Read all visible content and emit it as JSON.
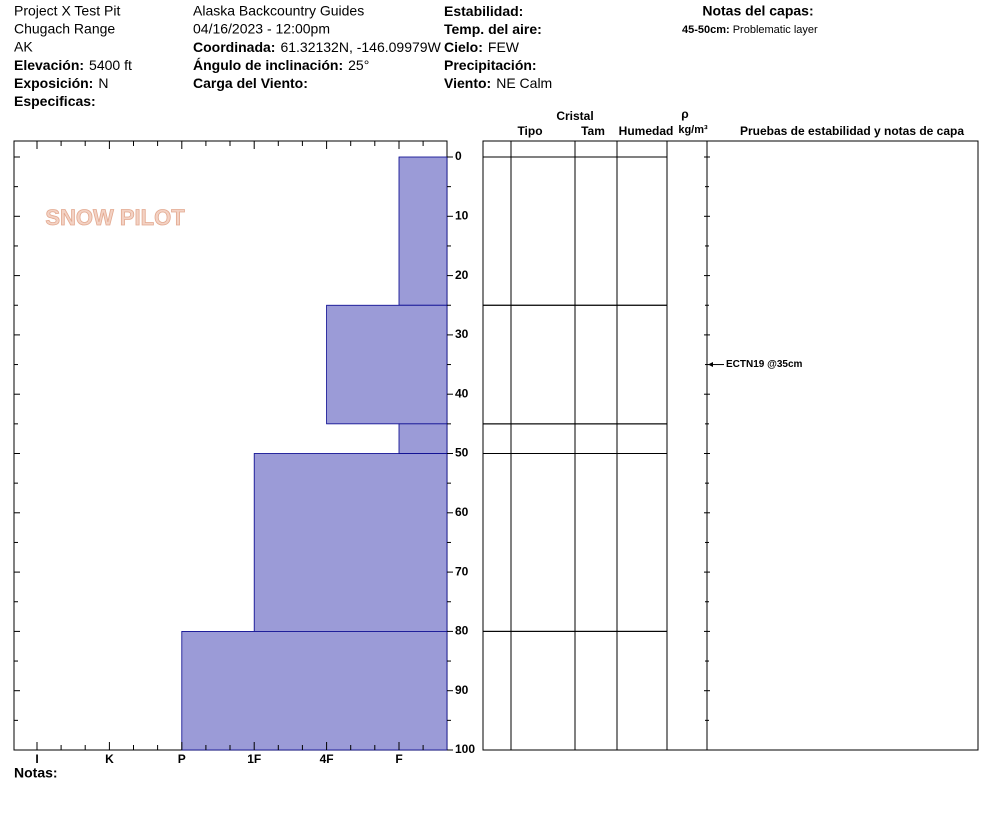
{
  "header": {
    "site": [
      "Project X Test Pit",
      "Chugach Range",
      "AK"
    ],
    "fields_left": [
      {
        "label": "Elevación:",
        "value": "5400 ft"
      },
      {
        "label": "Exposición:",
        "value": "N"
      },
      {
        "label": "Especificas:"
      }
    ],
    "observer": [
      "Alaska Backcountry Guides",
      "04/16/2023 - 12:00pm"
    ],
    "fields_mid": [
      {
        "label": "Coordinada:",
        "value": "61.32132N, -146.09979W"
      },
      {
        "label": "Ángulo de inclinación:",
        "value": "25°"
      },
      {
        "label": "Carga del Viento:"
      }
    ],
    "fields_right": [
      {
        "label": "Estabilidad:"
      },
      {
        "label": "Temp. del aire:"
      },
      {
        "label": "Cielo:",
        "value": "FEW"
      },
      {
        "label": "Precipitación:"
      },
      {
        "label": "Viento:",
        "value": "NE Calm"
      }
    ],
    "layer_notes_title": "Notas del capas:",
    "layer_notes": [
      {
        "label": "45-50cm:",
        "value": "Problematic layer"
      }
    ]
  },
  "logo": "SNOW PILOT",
  "footer": {
    "notes_label": "Notas:"
  },
  "chart_data": {
    "type": "snow-profile",
    "hardness_categories": [
      "I",
      "K",
      "P",
      "1F",
      "4F",
      "F"
    ],
    "tops": [
      0,
      25,
      45,
      50,
      80
    ],
    "bottoms": [
      25,
      45,
      50,
      80,
      100
    ],
    "hardness": [
      "F",
      "4F",
      "F",
      "1F",
      "P"
    ],
    "color": "#9b9bd7",
    "ylim": [
      0,
      100
    ],
    "yticks": [
      0,
      10,
      20,
      30,
      40,
      50,
      60,
      70,
      80,
      90,
      100
    ],
    "columns": {
      "crystal": "Cristal",
      "type": "Tipo",
      "size": "Tam",
      "moisture": "Humedad",
      "rho": "ρ",
      "density_unit": "kg/m³",
      "tests": "Pruebas de estabilidad y notas de capa"
    },
    "tests": [
      {
        "depth": 35,
        "label": "ECTN19 @35cm"
      }
    ]
  }
}
